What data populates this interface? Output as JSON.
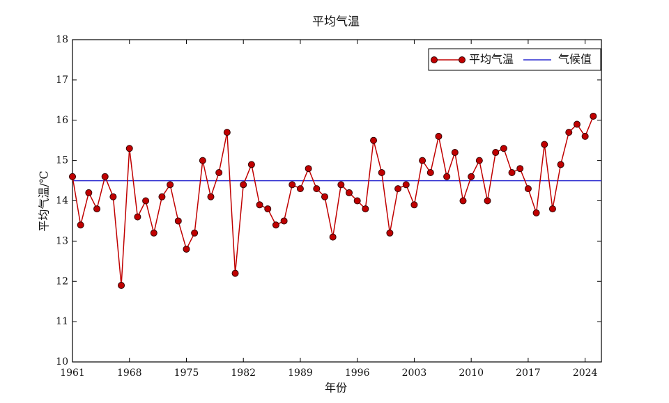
{
  "chart_data": {
    "type": "line",
    "title": "平均气温",
    "x_label": "年份",
    "y_label": "平均气温/℃",
    "x": [
      1961,
      1962,
      1963,
      1964,
      1965,
      1966,
      1967,
      1968,
      1969,
      1970,
      1971,
      1972,
      1973,
      1974,
      1975,
      1976,
      1977,
      1978,
      1979,
      1980,
      1981,
      1982,
      1983,
      1984,
      1985,
      1986,
      1987,
      1988,
      1989,
      1990,
      1991,
      1992,
      1993,
      1994,
      1995,
      1996,
      1997,
      1998,
      1999,
      2000,
      2001,
      2002,
      2003,
      2004,
      2005,
      2006,
      2007,
      2008,
      2009,
      2010,
      2011,
      2012,
      2013,
      2014,
      2015,
      2016,
      2017,
      2018,
      2019,
      2020,
      2021,
      2022,
      2023,
      2024,
      2025
    ],
    "series": [
      {
        "name": "平均气温",
        "color": "#c00000",
        "values": [
          14.6,
          13.4,
          14.2,
          13.8,
          14.6,
          14.1,
          11.9,
          15.3,
          13.6,
          14.0,
          13.2,
          14.1,
          14.4,
          13.5,
          12.8,
          13.2,
          15.0,
          14.1,
          14.7,
          15.7,
          12.2,
          14.4,
          14.9,
          13.9,
          13.8,
          13.4,
          13.5,
          14.4,
          14.3,
          14.8,
          14.3,
          14.1,
          13.1,
          14.4,
          14.2,
          14.0,
          13.8,
          15.5,
          14.7,
          13.2,
          14.3,
          14.4,
          13.9,
          15.0,
          14.7,
          15.6,
          14.6,
          15.2,
          14.0,
          14.6,
          15.0,
          14.0,
          15.2,
          15.3,
          14.7,
          14.8,
          14.3,
          13.7,
          15.4,
          13.8,
          14.9,
          15.7,
          15.9,
          15.6,
          16.1
        ]
      }
    ],
    "hlines": [
      {
        "name": "气候值",
        "value": 14.5,
        "color": "#2b2bd0"
      }
    ],
    "xlim": [
      1961,
      2026
    ],
    "xticks": [
      1961,
      1968,
      1975,
      1982,
      1989,
      1996,
      2003,
      2010,
      2017,
      2024
    ],
    "ylim": [
      10,
      18
    ],
    "yticks": [
      10,
      11,
      12,
      13,
      14,
      15,
      16,
      17,
      18
    ],
    "legend": "upper right"
  }
}
